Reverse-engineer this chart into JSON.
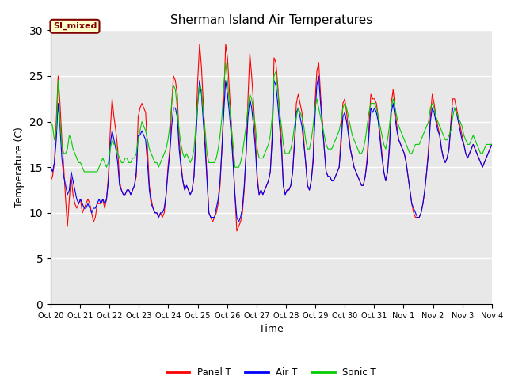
{
  "title": "Sherman Island Air Temperatures",
  "ylabel": "Temperature (C)",
  "xlabel": "Time",
  "ylim": [
    0,
    30
  ],
  "yticks": [
    0,
    5,
    10,
    15,
    20,
    25,
    30
  ],
  "xtick_labels": [
    "Oct 20",
    "Oct 21",
    "Oct 22",
    "Oct 23",
    "Oct 24",
    "Oct 25",
    "Oct 26",
    "Oct 27",
    "Oct 28",
    "Oct 29",
    "Oct 30",
    "Oct 31",
    "Nov 1",
    "Nov 2",
    "Nov 3",
    "Nov 4"
  ],
  "label_box_text": "SI_mixed",
  "label_box_facecolor": "#ffffcc",
  "label_box_edgecolor": "#800000",
  "label_box_textcolor": "#800000",
  "plot_bg_color": "#e8e8e8",
  "fig_bg_color": "#ffffff",
  "panel_t_color": "#ff0000",
  "air_t_color": "#0000ff",
  "sonic_t_color": "#00cc00",
  "legend_labels": [
    "Panel T",
    "Air T",
    "Sonic T"
  ],
  "panel_t": [
    13.5,
    14.0,
    15.5,
    20.0,
    25.0,
    22.0,
    18.0,
    15.0,
    11.5,
    8.5,
    11.5,
    14.0,
    12.0,
    11.0,
    10.5,
    11.0,
    11.5,
    10.0,
    10.5,
    11.0,
    11.5,
    11.0,
    10.0,
    9.0,
    9.5,
    11.0,
    11.0,
    11.0,
    11.5,
    10.5,
    11.5,
    14.0,
    19.0,
    22.5,
    20.5,
    19.0,
    17.0,
    13.5,
    12.5,
    12.0,
    12.0,
    12.5,
    12.5,
    12.0,
    12.5,
    13.0,
    14.0,
    20.5,
    21.5,
    22.0,
    21.5,
    21.0,
    17.0,
    13.0,
    11.5,
    10.5,
    10.0,
    10.0,
    9.5,
    10.0,
    9.5,
    10.0,
    12.0,
    15.0,
    17.0,
    22.0,
    25.0,
    24.5,
    23.0,
    18.0,
    15.5,
    13.5,
    12.5,
    13.0,
    12.5,
    12.0,
    12.5,
    14.0,
    19.0,
    24.5,
    28.5,
    26.0,
    22.0,
    18.0,
    14.0,
    10.0,
    9.5,
    9.0,
    9.5,
    10.0,
    11.0,
    13.0,
    17.0,
    22.0,
    28.5,
    27.0,
    23.5,
    20.0,
    16.0,
    12.0,
    8.0,
    8.5,
    9.0,
    10.0,
    12.5,
    16.5,
    22.5,
    27.5,
    25.0,
    22.0,
    18.0,
    14.0,
    12.0,
    12.5,
    12.0,
    12.5,
    13.0,
    13.5,
    14.5,
    18.5,
    27.0,
    26.5,
    24.0,
    21.0,
    18.0,
    13.0,
    12.0,
    12.5,
    12.5,
    13.0,
    14.5,
    18.0,
    22.0,
    23.0,
    22.0,
    21.0,
    18.0,
    15.5,
    13.0,
    12.5,
    13.5,
    16.0,
    22.0,
    25.5,
    26.5,
    23.0,
    20.0,
    17.0,
    14.5,
    14.0,
    14.0,
    13.5,
    13.5,
    14.0,
    14.5,
    15.0,
    18.5,
    22.0,
    22.5,
    21.0,
    19.0,
    17.0,
    16.0,
    15.0,
    14.5,
    14.0,
    13.5,
    13.0,
    13.0,
    14.0,
    16.0,
    19.5,
    23.0,
    22.5,
    22.5,
    22.0,
    20.5,
    18.5,
    16.5,
    14.5,
    13.5,
    14.5,
    17.5,
    22.0,
    23.5,
    21.5,
    19.5,
    18.0,
    17.5,
    17.0,
    16.5,
    15.5,
    14.0,
    12.5,
    11.0,
    10.0,
    9.5,
    9.5,
    9.5,
    10.0,
    11.0,
    12.5,
    14.5,
    17.0,
    20.5,
    23.0,
    22.0,
    20.5,
    19.5,
    18.5,
    17.0,
    16.0,
    15.5,
    16.0,
    17.0,
    20.0,
    22.5,
    22.5,
    21.5,
    20.5,
    19.5,
    18.5,
    17.5,
    16.5,
    16.0,
    16.5,
    17.0,
    17.5,
    17.0,
    16.5,
    16.0,
    15.5,
    15.0,
    15.5,
    16.0,
    16.5,
    17.0,
    17.5
  ],
  "air_t": [
    15.0,
    14.5,
    15.5,
    18.0,
    22.0,
    19.5,
    16.0,
    14.0,
    13.0,
    12.0,
    12.5,
    14.5,
    13.5,
    12.5,
    11.5,
    11.0,
    11.5,
    11.0,
    10.5,
    10.5,
    11.0,
    10.5,
    10.0,
    10.5,
    10.5,
    11.0,
    11.5,
    11.0,
    11.5,
    11.0,
    11.5,
    13.5,
    17.5,
    19.0,
    18.0,
    17.0,
    15.5,
    13.0,
    12.5,
    12.0,
    12.0,
    12.5,
    12.5,
    12.0,
    12.5,
    13.0,
    14.5,
    18.5,
    18.5,
    19.0,
    18.5,
    18.0,
    15.5,
    12.5,
    11.0,
    10.5,
    10.0,
    10.0,
    9.5,
    10.0,
    10.0,
    10.5,
    12.0,
    14.5,
    16.5,
    19.5,
    21.5,
    21.5,
    20.5,
    17.0,
    15.0,
    13.5,
    12.5,
    13.0,
    12.5,
    12.0,
    12.5,
    14.0,
    18.0,
    22.0,
    24.5,
    23.0,
    20.0,
    17.0,
    13.5,
    10.0,
    9.5,
    9.5,
    9.5,
    10.5,
    11.5,
    13.5,
    17.0,
    21.0,
    24.5,
    23.0,
    21.0,
    18.5,
    15.5,
    12.0,
    9.5,
    9.0,
    9.5,
    10.5,
    13.0,
    16.5,
    20.5,
    22.5,
    21.5,
    19.5,
    17.0,
    13.5,
    12.0,
    12.5,
    12.0,
    12.5,
    13.0,
    13.5,
    14.5,
    18.0,
    24.5,
    24.0,
    22.0,
    19.5,
    17.0,
    13.0,
    12.0,
    12.5,
    12.5,
    13.0,
    14.5,
    17.5,
    21.0,
    21.5,
    20.5,
    19.5,
    17.5,
    15.5,
    13.0,
    12.5,
    13.5,
    15.5,
    20.5,
    24.0,
    25.0,
    22.0,
    19.5,
    17.0,
    14.5,
    14.0,
    14.0,
    13.5,
    13.5,
    14.0,
    14.5,
    15.0,
    17.5,
    20.5,
    21.0,
    20.0,
    18.5,
    17.0,
    16.0,
    15.0,
    14.5,
    14.0,
    13.5,
    13.0,
    13.0,
    14.0,
    15.5,
    18.5,
    21.5,
    21.0,
    21.5,
    21.0,
    20.0,
    18.0,
    16.0,
    14.5,
    13.5,
    14.5,
    17.0,
    21.0,
    22.0,
    20.5,
    19.0,
    18.0,
    17.5,
    17.0,
    16.5,
    15.5,
    14.0,
    12.5,
    11.0,
    10.5,
    10.0,
    9.5,
    9.5,
    10.0,
    11.0,
    12.5,
    14.5,
    16.5,
    20.0,
    21.5,
    21.0,
    20.0,
    19.0,
    18.5,
    17.0,
    16.0,
    15.5,
    16.0,
    17.0,
    19.5,
    21.5,
    21.5,
    21.0,
    20.0,
    19.0,
    18.0,
    17.5,
    16.5,
    16.0,
    16.5,
    17.0,
    17.5,
    17.0,
    16.5,
    16.0,
    15.5,
    15.0,
    15.5,
    16.0,
    16.5,
    17.0,
    17.5
  ],
  "sonic_t": [
    20.0,
    19.5,
    18.0,
    19.0,
    24.5,
    20.0,
    17.5,
    16.5,
    16.5,
    17.0,
    18.5,
    18.0,
    17.0,
    16.5,
    16.0,
    15.5,
    15.5,
    15.0,
    14.5,
    14.5,
    14.5,
    14.5,
    14.5,
    14.5,
    14.5,
    14.5,
    15.0,
    15.5,
    16.0,
    15.5,
    15.0,
    15.5,
    17.0,
    18.0,
    17.5,
    17.5,
    16.5,
    16.0,
    15.5,
    15.5,
    16.0,
    16.0,
    15.5,
    15.5,
    16.0,
    16.0,
    16.5,
    18.0,
    19.0,
    20.0,
    19.5,
    19.0,
    18.0,
    17.0,
    16.5,
    16.0,
    15.5,
    15.5,
    15.0,
    15.5,
    16.0,
    16.5,
    17.0,
    18.0,
    19.5,
    22.0,
    24.0,
    23.5,
    21.5,
    19.0,
    17.5,
    16.5,
    16.0,
    16.5,
    16.0,
    15.5,
    16.0,
    17.0,
    19.5,
    22.0,
    24.0,
    23.5,
    21.0,
    19.0,
    16.5,
    15.5,
    15.5,
    15.5,
    15.5,
    16.0,
    17.0,
    18.5,
    20.5,
    24.0,
    26.5,
    24.5,
    22.0,
    19.5,
    17.5,
    15.0,
    15.0,
    15.0,
    15.5,
    16.5,
    18.0,
    19.5,
    21.5,
    23.0,
    22.5,
    21.0,
    19.5,
    17.0,
    16.0,
    16.0,
    16.0,
    16.5,
    17.0,
    17.5,
    18.5,
    20.5,
    25.0,
    25.5,
    23.5,
    21.0,
    19.5,
    17.5,
    16.5,
    16.5,
    16.5,
    17.0,
    18.0,
    19.5,
    20.5,
    21.5,
    21.0,
    20.5,
    19.5,
    18.0,
    17.0,
    17.0,
    18.0,
    19.5,
    21.5,
    22.5,
    21.5,
    20.5,
    19.5,
    18.5,
    17.5,
    17.0,
    17.0,
    17.0,
    17.5,
    18.0,
    18.5,
    19.0,
    20.0,
    21.5,
    22.0,
    21.5,
    20.5,
    19.5,
    18.5,
    18.0,
    17.5,
    17.0,
    16.5,
    16.5,
    17.0,
    18.0,
    19.5,
    21.0,
    22.0,
    22.0,
    22.0,
    21.5,
    20.5,
    19.5,
    18.5,
    17.5,
    17.0,
    18.0,
    19.5,
    21.5,
    22.5,
    21.5,
    20.5,
    19.5,
    19.0,
    18.5,
    18.0,
    17.5,
    17.0,
    16.5,
    16.5,
    17.0,
    17.5,
    17.5,
    17.5,
    18.0,
    18.5,
    19.0,
    19.5,
    20.0,
    21.5,
    22.0,
    21.5,
    20.5,
    20.0,
    19.5,
    19.0,
    18.5,
    18.0,
    18.0,
    18.5,
    19.0,
    20.5,
    21.5,
    21.0,
    20.5,
    20.0,
    19.5,
    18.5,
    18.0,
    17.5,
    17.5,
    18.0,
    18.5,
    18.0,
    17.5,
    17.0,
    16.5,
    16.5,
    17.0,
    17.5,
    17.5,
    17.5,
    17.5
  ]
}
